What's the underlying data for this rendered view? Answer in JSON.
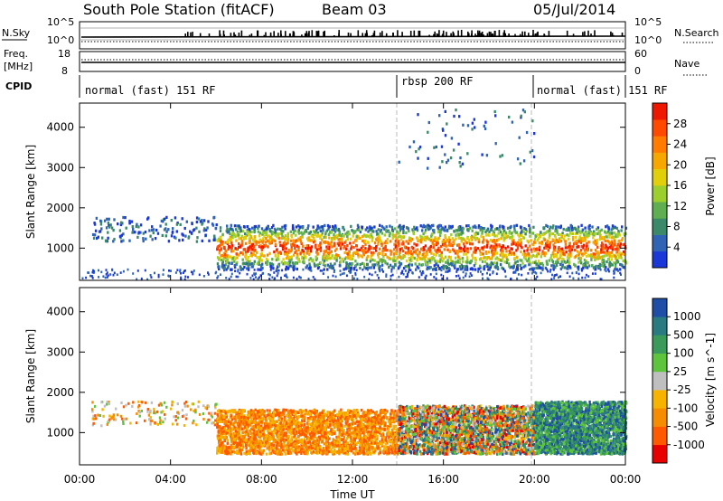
{
  "header": {
    "station": "South Pole Station (fitACF)",
    "beam": "Beam 03",
    "date": "05/Jul/2014"
  },
  "top_panels": {
    "nsky_label": "N.Sky",
    "nsky_ticks": [
      "10^5",
      "10^0"
    ],
    "nsearch_label": "N.Search",
    "nsearch_ticks": [
      "10^5",
      "10^0"
    ],
    "freq_label_1": "Freq.",
    "freq_label_2": "[MHz]",
    "freq_ticks": [
      "18",
      "8"
    ],
    "nave_label": "Nave",
    "nave_ticks": [
      "60",
      "0"
    ],
    "cpid_label": "CPID",
    "cpid_segments": [
      {
        "label": "normal (fast) 151 RF",
        "start": 0,
        "end": 14
      },
      {
        "label": "rbsp 200 RF",
        "start": 14,
        "end": 20
      },
      {
        "label": "normal (fast) 151 RF",
        "start": 20,
        "end": 24
      }
    ]
  },
  "chart_data": [
    {
      "type": "heatmap",
      "name": "power",
      "ylabel": "Slant Range [km]",
      "xlabel": "Time UT",
      "xlim": [
        0,
        24
      ],
      "ylim": [
        200,
        4600
      ],
      "x_ticks": [
        "00:00",
        "04:00",
        "08:00",
        "12:00",
        "16:00",
        "20:00",
        "00:00"
      ],
      "y_ticks": [
        1000,
        2000,
        3000,
        4000
      ],
      "colorbar": {
        "label": "Power [dB]",
        "ticks": [
          4,
          8,
          12,
          16,
          20,
          24,
          28
        ],
        "range": [
          0,
          32
        ],
        "colors": [
          "#1a37d8",
          "#2f64b4",
          "#3a8a6a",
          "#5fae4f",
          "#9ccf2e",
          "#e0cf0a",
          "#f6a800",
          "#ff7c00",
          "#ff4a00",
          "#ee1800"
        ]
      },
      "echo_regions": [
        {
          "t_start": 6.0,
          "t_end": 24.0,
          "range_low": 500,
          "range_high": 1600,
          "level": "strong"
        },
        {
          "t_start": 0.5,
          "t_end": 6.0,
          "range_low": 1200,
          "range_high": 1800,
          "level": "weak"
        },
        {
          "t_start": 14.0,
          "t_end": 20.0,
          "range_low": 3000,
          "range_high": 4500,
          "level": "sparse"
        }
      ]
    },
    {
      "type": "heatmap",
      "name": "velocity",
      "ylabel": "Slant Range [km]",
      "xlabel": "Time UT",
      "xlim": [
        0,
        24
      ],
      "ylim": [
        200,
        4600
      ],
      "x_ticks": [
        "00:00",
        "04:00",
        "08:00",
        "12:00",
        "16:00",
        "20:00",
        "00:00"
      ],
      "y_ticks": [
        1000,
        2000,
        3000,
        4000
      ],
      "colorbar": {
        "label": "Velocity [m s^-1]",
        "ticks": [
          "1000",
          "500",
          "100",
          "25",
          "-25",
          "-100",
          "-500",
          "-1000"
        ],
        "range": [
          -1200,
          1200
        ],
        "colors": [
          "#e80000",
          "#ff5a00",
          "#f68c00",
          "#f6b400",
          "#bfbfbf",
          "#5ec43c",
          "#3a9a5a",
          "#2a7a82",
          "#1e4ea6"
        ]
      },
      "echo_regions": [
        {
          "t_start": 6.0,
          "t_end": 14.0,
          "range_low": 500,
          "range_high": 1600,
          "sign": "away"
        },
        {
          "t_start": 14.0,
          "t_end": 20.0,
          "range_low": 500,
          "range_high": 1700,
          "sign": "mixed"
        },
        {
          "t_start": 20.0,
          "t_end": 24.0,
          "range_low": 500,
          "range_high": 1800,
          "sign": "toward"
        }
      ]
    }
  ]
}
